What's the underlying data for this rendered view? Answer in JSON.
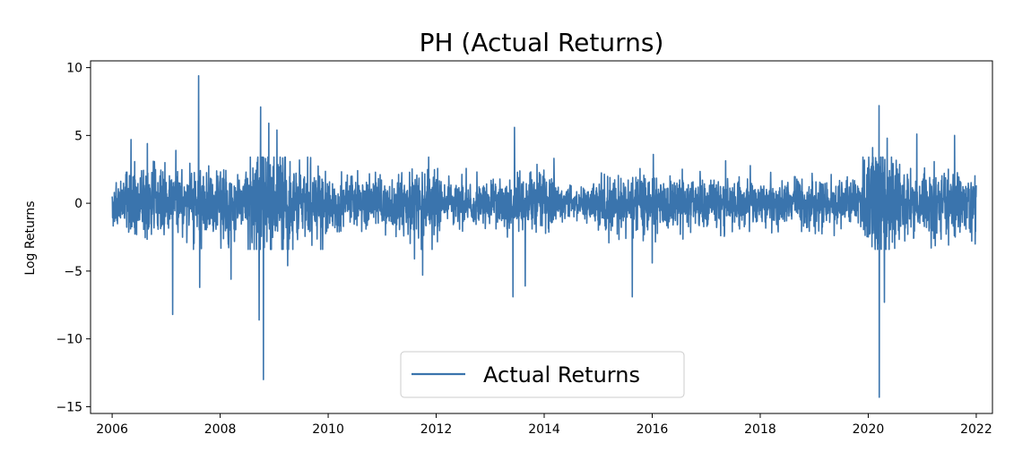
{
  "chart_data": {
    "type": "line",
    "title": "PH (Actual Returns)",
    "xlabel": "",
    "ylabel": "Log Returns",
    "xlim": [
      2005.6,
      2022.3
    ],
    "ylim": [
      -15.5,
      10.5
    ],
    "x_ticks": [
      "2006",
      "2008",
      "2010",
      "2012",
      "2014",
      "2016",
      "2018",
      "2020",
      "2022"
    ],
    "y_ticks": [
      "10",
      "5",
      "0",
      "−5",
      "−10",
      "−15"
    ],
    "y_tick_values": [
      10,
      5,
      0,
      -5,
      -10,
      -15
    ],
    "grid": false,
    "legend_position": "lower-center",
    "series": [
      {
        "name": "Actual Returns",
        "color": "#3a74ad",
        "frequency": "daily",
        "start": 2006.0,
        "end": 2022.0,
        "volatility_regimes": [
          {
            "x": [
              2006.0,
              2006.25
            ],
            "amp": 0.9
          },
          {
            "x": [
              2006.25,
              2007.0
            ],
            "amp": 1.4
          },
          {
            "x": [
              2007.0,
              2007.5
            ],
            "amp": 1.2
          },
          {
            "x": [
              2007.5,
              2008.5
            ],
            "amp": 1.5
          },
          {
            "x": [
              2008.5,
              2009.3
            ],
            "amp": 2.3
          },
          {
            "x": [
              2009.3,
              2010.0
            ],
            "amp": 1.5
          },
          {
            "x": [
              2010.0,
              2011.5
            ],
            "amp": 1.1
          },
          {
            "x": [
              2011.5,
              2012.1
            ],
            "amp": 1.5
          },
          {
            "x": [
              2012.1,
              2013.3
            ],
            "amp": 0.9
          },
          {
            "x": [
              2013.3,
              2014.2
            ],
            "amp": 1.2
          },
          {
            "x": [
              2014.2,
              2015.0
            ],
            "amp": 0.7
          },
          {
            "x": [
              2015.0,
              2016.5
            ],
            "amp": 1.1
          },
          {
            "x": [
              2016.5,
              2017.8
            ],
            "amp": 1.0
          },
          {
            "x": [
              2017.8,
              2019.9
            ],
            "amp": 0.9
          },
          {
            "x": [
              2019.9,
              2020.6
            ],
            "amp": 2.2
          },
          {
            "x": [
              2020.6,
              2022.0
            ],
            "amp": 1.3
          }
        ],
        "notable_points": [
          {
            "x": 2006.35,
            "y": 4.7
          },
          {
            "x": 2006.65,
            "y": 4.4
          },
          {
            "x": 2007.12,
            "y": -8.2
          },
          {
            "x": 2007.18,
            "y": 3.9
          },
          {
            "x": 2007.6,
            "y": 9.4
          },
          {
            "x": 2007.62,
            "y": -6.2
          },
          {
            "x": 2008.2,
            "y": -5.6
          },
          {
            "x": 2008.72,
            "y": -8.6
          },
          {
            "x": 2008.75,
            "y": 7.1
          },
          {
            "x": 2008.8,
            "y": -13.0
          },
          {
            "x": 2008.9,
            "y": 5.9
          },
          {
            "x": 2009.05,
            "y": 5.4
          },
          {
            "x": 2009.25,
            "y": -4.6
          },
          {
            "x": 2011.6,
            "y": -4.1
          },
          {
            "x": 2011.75,
            "y": -5.3
          },
          {
            "x": 2013.45,
            "y": 5.6
          },
          {
            "x": 2013.42,
            "y": -6.9
          },
          {
            "x": 2013.65,
            "y": -6.1
          },
          {
            "x": 2015.63,
            "y": -6.9
          },
          {
            "x": 2016.02,
            "y": 3.6
          },
          {
            "x": 2016.0,
            "y": -4.4
          },
          {
            "x": 2020.08,
            "y": 4.1
          },
          {
            "x": 2020.2,
            "y": 7.2
          },
          {
            "x": 2020.2,
            "y": -14.3
          },
          {
            "x": 2020.3,
            "y": -7.3
          },
          {
            "x": 2020.35,
            "y": 4.8
          },
          {
            "x": 2020.9,
            "y": 5.1
          },
          {
            "x": 2021.6,
            "y": 5.0
          },
          {
            "x": 2021.98,
            "y": -3.0
          }
        ]
      }
    ]
  }
}
